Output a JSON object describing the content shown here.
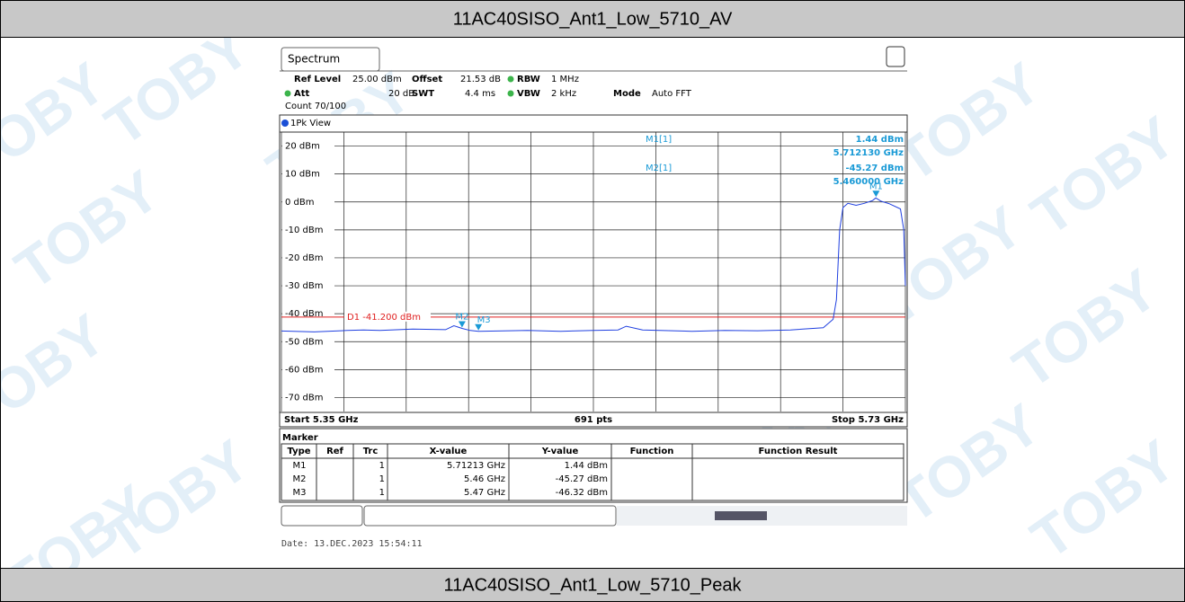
{
  "document": {
    "header": "11AC40SISO_Ant1_Low_5710_AV",
    "footer": "11AC40SISO_Ant1_Low_5710_Peak",
    "date": "Date: 13.DEC.2023  15:54:11",
    "watermark": "TOBY"
  },
  "analyzer": {
    "tab": "Spectrum",
    "settings": [
      [
        "Ref Level",
        "25.00 dBm"
      ],
      [
        "Offset",
        "21.53 dB"
      ],
      [
        "RBW",
        "1 MHz"
      ],
      [
        "Att",
        "20 dB"
      ],
      [
        "SWT",
        "4.4 ms"
      ],
      [
        "VBW",
        "2 kHz"
      ],
      [
        "Mode",
        "Auto FFT"
      ]
    ],
    "count": "Count 70/100",
    "view": "1Pk View",
    "plot": {
      "ylim": [
        -75,
        25
      ],
      "xlim": [
        5.35,
        5.73
      ],
      "yticks": [
        {
          "value": 20,
          "label": "20 dBm"
        },
        {
          "value": 10,
          "label": "10 dBm"
        },
        {
          "value": 0,
          "label": "0 dBm"
        },
        {
          "value": -10,
          "label": "-10 dBm"
        },
        {
          "value": -20,
          "label": "-20 dBm"
        },
        {
          "value": -30,
          "label": "-30 dBm"
        },
        {
          "value": -40,
          "label": "-40 dBm"
        },
        {
          "value": -50,
          "label": "-50 dBm"
        },
        {
          "value": -60,
          "label": "-60 dBm"
        },
        {
          "value": -70,
          "label": "-70 dBm"
        }
      ],
      "xgrid": [
        5.35,
        5.388,
        5.426,
        5.464,
        5.502,
        5.54,
        5.578,
        5.616,
        5.654,
        5.692,
        5.73
      ],
      "start": "Start 5.35 GHz",
      "points": "691 pts",
      "stop": "Stop 5.73 GHz",
      "display_line": {
        "value": -41.2,
        "label": "D1 -41.200 dBm"
      },
      "trace": {
        "x": [
          5.35,
          5.37,
          5.39,
          5.4,
          5.41,
          5.43,
          5.45,
          5.455,
          5.46,
          5.465,
          5.47,
          5.5,
          5.52,
          5.54,
          5.555,
          5.56,
          5.57,
          5.6,
          5.62,
          5.64,
          5.66,
          5.68,
          5.686,
          5.688,
          5.69,
          5.692,
          5.695,
          5.7,
          5.705,
          5.71,
          5.712,
          5.715,
          5.72,
          5.727,
          5.729,
          5.73
        ],
        "y": [
          -46.2,
          -46.5,
          -46.0,
          -45.8,
          -46.0,
          -45.5,
          -45.7,
          -44.3,
          -45.27,
          -46.0,
          -46.32,
          -46.0,
          -46.3,
          -46.0,
          -45.8,
          -44.5,
          -45.8,
          -46.3,
          -46.0,
          -46.1,
          -45.8,
          -45.0,
          -42,
          -35,
          -10,
          -2,
          -0.5,
          -1.2,
          -0.5,
          0.5,
          1.44,
          0.3,
          -0.6,
          -2.5,
          -10,
          -30
        ]
      },
      "markers": [
        {
          "label": "M1",
          "x": 5.71213,
          "y": 1.44
        },
        {
          "label": "M2",
          "x": 5.46,
          "y": -45.27
        },
        {
          "label": "M3",
          "x": 5.47,
          "y": -46.32
        }
      ],
      "readouts": [
        [
          "M1[1]",
          "1.44 dBm",
          "5.712130 GHz"
        ],
        [
          "M2[1]",
          "-45.27 dBm",
          "5.460000 GHz"
        ]
      ]
    },
    "marker_table": {
      "title": "Marker",
      "headers": [
        "Type",
        "Ref",
        "Trc",
        "X-value",
        "Y-value",
        "Function",
        "Function Result"
      ],
      "rows": [
        [
          "M1",
          "1",
          "5.71213 GHz",
          "1.44 dBm"
        ],
        [
          "M2",
          "1",
          "5.46 GHz",
          "-45.27 dBm"
        ],
        [
          "M3",
          "1",
          "5.47 GHz",
          "-46.32 dBm"
        ]
      ]
    }
  }
}
